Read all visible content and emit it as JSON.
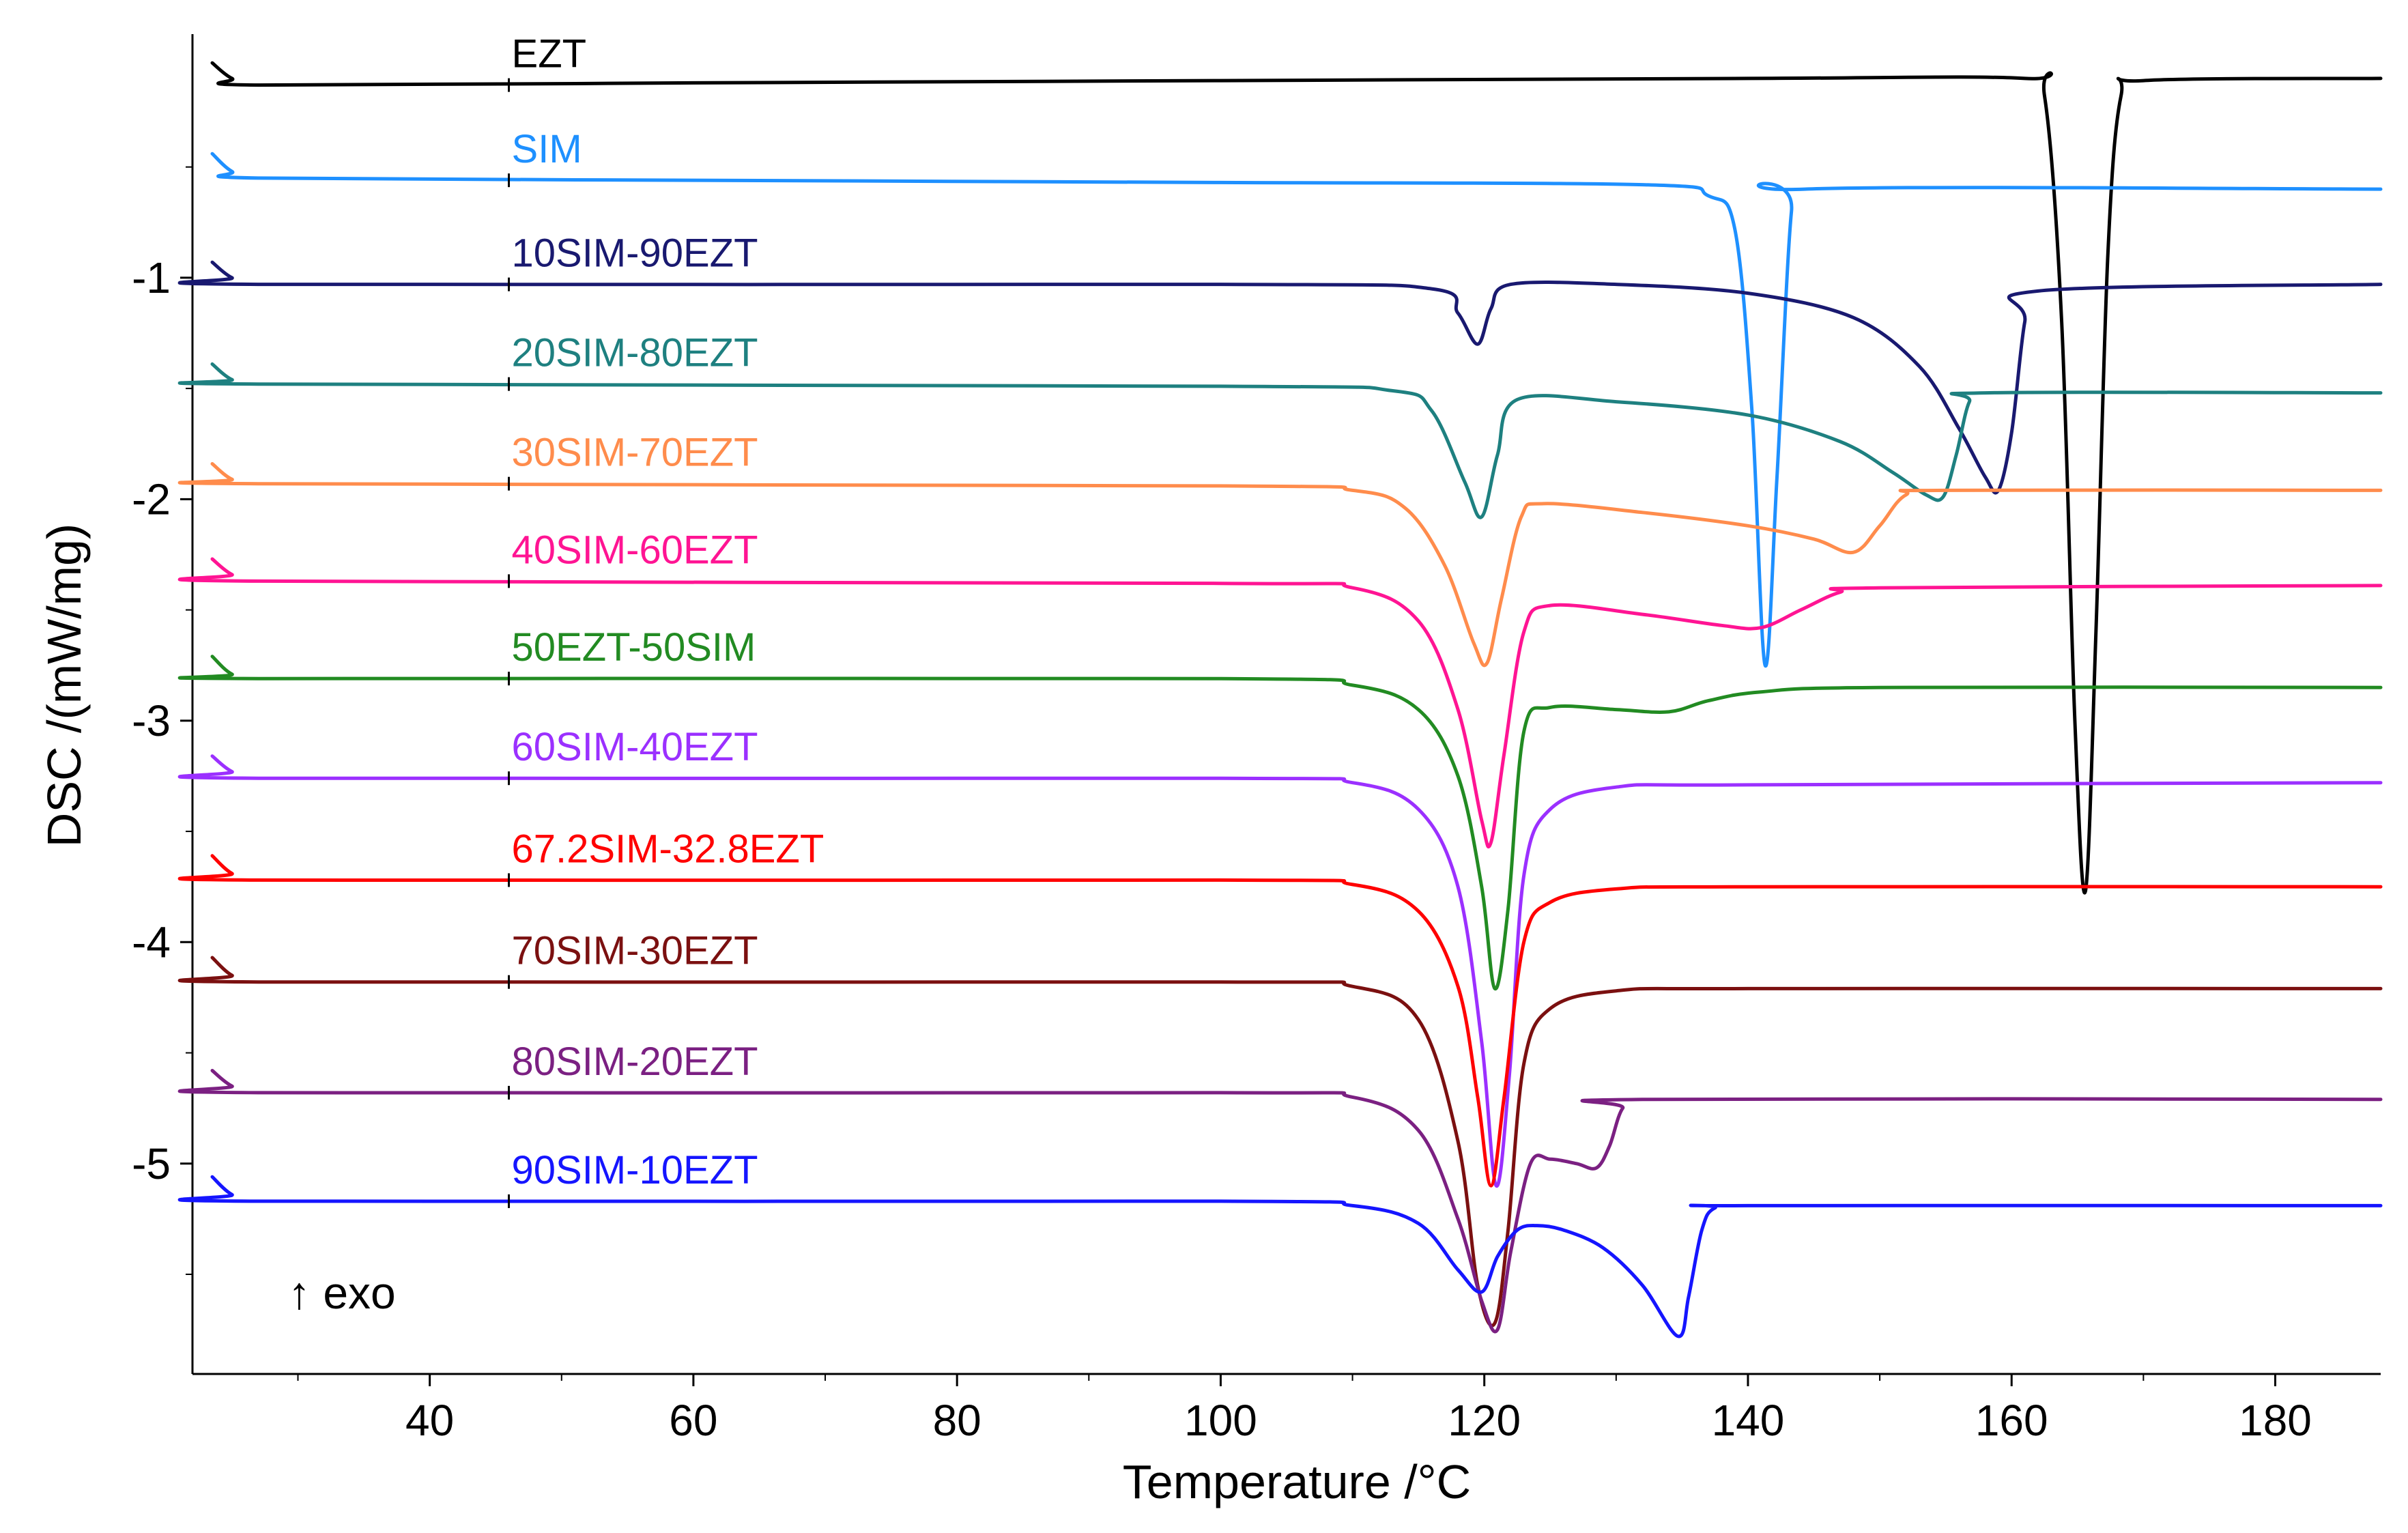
{
  "chart_data": {
    "type": "line",
    "title": "",
    "xlabel": "Temperature /°C",
    "ylabel": "DSC /(mW/mg)",
    "annotation": "↑ exo",
    "xlim": [
      22,
      188
    ],
    "ylim": [
      -5.95,
      0.1
    ],
    "xticks": [
      40,
      60,
      80,
      100,
      120,
      140,
      160,
      180
    ],
    "yticks": [
      -1,
      -2,
      -3,
      -4,
      -5
    ],
    "ytick_labels": [
      "-1",
      "-2",
      "-3",
      "-4",
      "-5"
    ],
    "grid": false,
    "label_x": 46,
    "series": [
      {
        "name": "EZT",
        "color": "#000000",
        "baseline_start": -0.13,
        "baseline_end": -0.1,
        "points": [
          [
            23.5,
            -0.03
          ],
          [
            25,
            -0.1
          ],
          [
            27,
            -0.13
          ],
          [
            60,
            -0.12
          ],
          [
            100,
            -0.11
          ],
          [
            140,
            -0.1
          ],
          [
            161,
            -0.1
          ],
          [
            162.5,
            -0.18
          ],
          [
            163.8,
            -1.2
          ],
          [
            164.8,
            -3.0
          ],
          [
            165.6,
            -3.77
          ],
          [
            166.4,
            -2.6
          ],
          [
            167.3,
            -0.9
          ],
          [
            168.3,
            -0.18
          ],
          [
            170,
            -0.11
          ],
          [
            188,
            -0.1
          ]
        ]
      },
      {
        "name": "SIM",
        "color": "#1E90FF",
        "baseline_start": -0.56,
        "baseline_end": -0.6,
        "points": [
          [
            23.5,
            -0.44
          ],
          [
            25,
            -0.52
          ],
          [
            27,
            -0.55
          ],
          [
            60,
            -0.56
          ],
          [
            100,
            -0.57
          ],
          [
            132,
            -0.58
          ],
          [
            137,
            -0.63
          ],
          [
            139,
            -0.78
          ],
          [
            140.3,
            -1.6
          ],
          [
            141.3,
            -2.75
          ],
          [
            142.2,
            -1.9
          ],
          [
            143.3,
            -0.7
          ],
          [
            144.3,
            -0.6
          ],
          [
            188,
            -0.6
          ]
        ]
      },
      {
        "name": "10SIM-90EZT",
        "color": "#191970",
        "baseline_start": -1.03,
        "baseline_end": -1.03,
        "points": [
          [
            23.5,
            -0.93
          ],
          [
            25,
            -1.0
          ],
          [
            27,
            -1.03
          ],
          [
            100,
            -1.03
          ],
          [
            116,
            -1.05
          ],
          [
            118,
            -1.16
          ],
          [
            119.5,
            -1.3
          ],
          [
            120.5,
            -1.14
          ],
          [
            122,
            -1.03
          ],
          [
            130,
            -1.03
          ],
          [
            140,
            -1.07
          ],
          [
            148,
            -1.18
          ],
          [
            153,
            -1.4
          ],
          [
            156,
            -1.68
          ],
          [
            158,
            -1.9
          ],
          [
            159,
            -1.96
          ],
          [
            160,
            -1.7
          ],
          [
            161,
            -1.2
          ],
          [
            162,
            -1.06
          ],
          [
            188,
            -1.03
          ]
        ]
      },
      {
        "name": "20SIM-80EZT",
        "color": "#1E8080",
        "baseline_start": -1.48,
        "baseline_end": -1.52,
        "points": [
          [
            23.5,
            -1.39
          ],
          [
            25,
            -1.46
          ],
          [
            27,
            -1.48
          ],
          [
            100,
            -1.49
          ],
          [
            113,
            -1.51
          ],
          [
            116,
            -1.6
          ],
          [
            118.5,
            -1.92
          ],
          [
            119.8,
            -2.08
          ],
          [
            121,
            -1.8
          ],
          [
            122.5,
            -1.55
          ],
          [
            130,
            -1.56
          ],
          [
            140,
            -1.62
          ],
          [
            147,
            -1.74
          ],
          [
            151,
            -1.88
          ],
          [
            153.5,
            -1.98
          ],
          [
            154.8,
            -1.99
          ],
          [
            155.8,
            -1.8
          ],
          [
            156.8,
            -1.56
          ],
          [
            158,
            -1.52
          ],
          [
            188,
            -1.52
          ]
        ]
      },
      {
        "name": "30SIM-70EZT",
        "color": "#FF8C4C",
        "baseline_start": -1.93,
        "baseline_end": -1.96,
        "points": [
          [
            23.5,
            -1.84
          ],
          [
            25,
            -1.91
          ],
          [
            27,
            -1.93
          ],
          [
            100,
            -1.94
          ],
          [
            110,
            -1.96
          ],
          [
            114,
            -2.04
          ],
          [
            117,
            -2.3
          ],
          [
            119.2,
            -2.65
          ],
          [
            120.2,
            -2.74
          ],
          [
            121.3,
            -2.45
          ],
          [
            122.8,
            -2.08
          ],
          [
            124.5,
            -2.02
          ],
          [
            132,
            -2.06
          ],
          [
            140,
            -2.12
          ],
          [
            145,
            -2.18
          ],
          [
            148,
            -2.24
          ],
          [
            150,
            -2.12
          ],
          [
            152,
            -1.98
          ],
          [
            155,
            -1.96
          ],
          [
            188,
            -1.96
          ]
        ]
      },
      {
        "name": "40SIM-60EZT",
        "color": "#FF1493",
        "baseline_start": -2.37,
        "baseline_end": -2.39,
        "points": [
          [
            23.5,
            -2.27
          ],
          [
            25,
            -2.34
          ],
          [
            27,
            -2.37
          ],
          [
            100,
            -2.38
          ],
          [
            110,
            -2.4
          ],
          [
            115,
            -2.55
          ],
          [
            118,
            -2.95
          ],
          [
            119.8,
            -3.45
          ],
          [
            120.5,
            -3.55
          ],
          [
            121.5,
            -3.15
          ],
          [
            123,
            -2.6
          ],
          [
            125,
            -2.48
          ],
          [
            132,
            -2.52
          ],
          [
            138,
            -2.57
          ],
          [
            141,
            -2.58
          ],
          [
            144,
            -2.5
          ],
          [
            147,
            -2.42
          ],
          [
            150,
            -2.4
          ],
          [
            188,
            -2.39
          ]
        ]
      },
      {
        "name": "50EZT-50SIM",
        "color": "#228B22",
        "baseline_start": -2.81,
        "baseline_end": -2.85,
        "points": [
          [
            23.5,
            -2.71
          ],
          [
            25,
            -2.79
          ],
          [
            27,
            -2.81
          ],
          [
            100,
            -2.81
          ],
          [
            110,
            -2.84
          ],
          [
            115,
            -2.95
          ],
          [
            118,
            -3.25
          ],
          [
            119.8,
            -3.75
          ],
          [
            120.8,
            -4.21
          ],
          [
            121.8,
            -3.85
          ],
          [
            123,
            -3.05
          ],
          [
            125,
            -2.94
          ],
          [
            130,
            -2.95
          ],
          [
            134,
            -2.96
          ],
          [
            137,
            -2.91
          ],
          [
            141,
            -2.87
          ],
          [
            150,
            -2.85
          ],
          [
            188,
            -2.85
          ]
        ]
      },
      {
        "name": "60SIM-40EZT",
        "color": "#9B30FF",
        "baseline_start": -3.26,
        "baseline_end": -3.28,
        "points": [
          [
            23.5,
            -3.16
          ],
          [
            25,
            -3.23
          ],
          [
            27,
            -3.26
          ],
          [
            100,
            -3.26
          ],
          [
            110,
            -3.28
          ],
          [
            115,
            -3.4
          ],
          [
            118,
            -3.75
          ],
          [
            119.8,
            -4.45
          ],
          [
            120.9,
            -5.1
          ],
          [
            121.9,
            -4.6
          ],
          [
            123,
            -3.7
          ],
          [
            125,
            -3.4
          ],
          [
            130,
            -3.3
          ],
          [
            140,
            -3.29
          ],
          [
            188,
            -3.28
          ]
        ]
      },
      {
        "name": "67.2SIM-32.8EZT",
        "color": "#FF0000",
        "baseline_start": -3.72,
        "baseline_end": -3.75,
        "points": [
          [
            23.5,
            -3.61
          ],
          [
            25,
            -3.69
          ],
          [
            27,
            -3.72
          ],
          [
            100,
            -3.72
          ],
          [
            110,
            -3.74
          ],
          [
            115,
            -3.86
          ],
          [
            118,
            -4.2
          ],
          [
            119.5,
            -4.7
          ],
          [
            120.5,
            -5.1
          ],
          [
            121.5,
            -4.7
          ],
          [
            123,
            -4.0
          ],
          [
            125,
            -3.82
          ],
          [
            130,
            -3.76
          ],
          [
            140,
            -3.75
          ],
          [
            188,
            -3.75
          ]
        ]
      },
      {
        "name": "70SIM-30EZT",
        "color": "#7B1010",
        "baseline_start": -4.18,
        "baseline_end": -4.21,
        "points": [
          [
            23.5,
            -4.07
          ],
          [
            25,
            -4.15
          ],
          [
            27,
            -4.18
          ],
          [
            100,
            -4.18
          ],
          [
            110,
            -4.2
          ],
          [
            115,
            -4.35
          ],
          [
            118,
            -4.9
          ],
          [
            119.5,
            -5.55
          ],
          [
            120.8,
            -5.72
          ],
          [
            121.8,
            -5.3
          ],
          [
            123,
            -4.55
          ],
          [
            125,
            -4.3
          ],
          [
            130,
            -4.22
          ],
          [
            140,
            -4.21
          ],
          [
            188,
            -4.21
          ]
        ]
      },
      {
        "name": "80SIM-20EZT",
        "color": "#7B2082",
        "baseline_start": -4.68,
        "baseline_end": -4.71,
        "points": [
          [
            23.5,
            -4.58
          ],
          [
            25,
            -4.65
          ],
          [
            27,
            -4.68
          ],
          [
            100,
            -4.68
          ],
          [
            110,
            -4.7
          ],
          [
            115,
            -4.85
          ],
          [
            118,
            -5.25
          ],
          [
            119.8,
            -5.62
          ],
          [
            121,
            -5.75
          ],
          [
            122,
            -5.4
          ],
          [
            123.5,
            -5.0
          ],
          [
            125,
            -4.98
          ],
          [
            127,
            -5.0
          ],
          [
            128.5,
            -5.02
          ],
          [
            129.5,
            -4.92
          ],
          [
            130.5,
            -4.75
          ],
          [
            132,
            -4.71
          ],
          [
            188,
            -4.71
          ]
        ]
      },
      {
        "name": "90SIM-10EZT",
        "color": "#1515FF",
        "baseline_start": -5.17,
        "baseline_end": -5.19,
        "points": [
          [
            23.5,
            -5.06
          ],
          [
            25,
            -5.14
          ],
          [
            27,
            -5.17
          ],
          [
            100,
            -5.17
          ],
          [
            110,
            -5.19
          ],
          [
            115,
            -5.27
          ],
          [
            118,
            -5.48
          ],
          [
            119.8,
            -5.58
          ],
          [
            121,
            -5.42
          ],
          [
            122.5,
            -5.3
          ],
          [
            124,
            -5.28
          ],
          [
            126,
            -5.3
          ],
          [
            129,
            -5.38
          ],
          [
            132,
            -5.55
          ],
          [
            134.7,
            -5.78
          ],
          [
            135.5,
            -5.6
          ],
          [
            136.5,
            -5.3
          ],
          [
            137.5,
            -5.2
          ],
          [
            140,
            -5.19
          ],
          [
            188,
            -5.19
          ]
        ]
      }
    ]
  }
}
